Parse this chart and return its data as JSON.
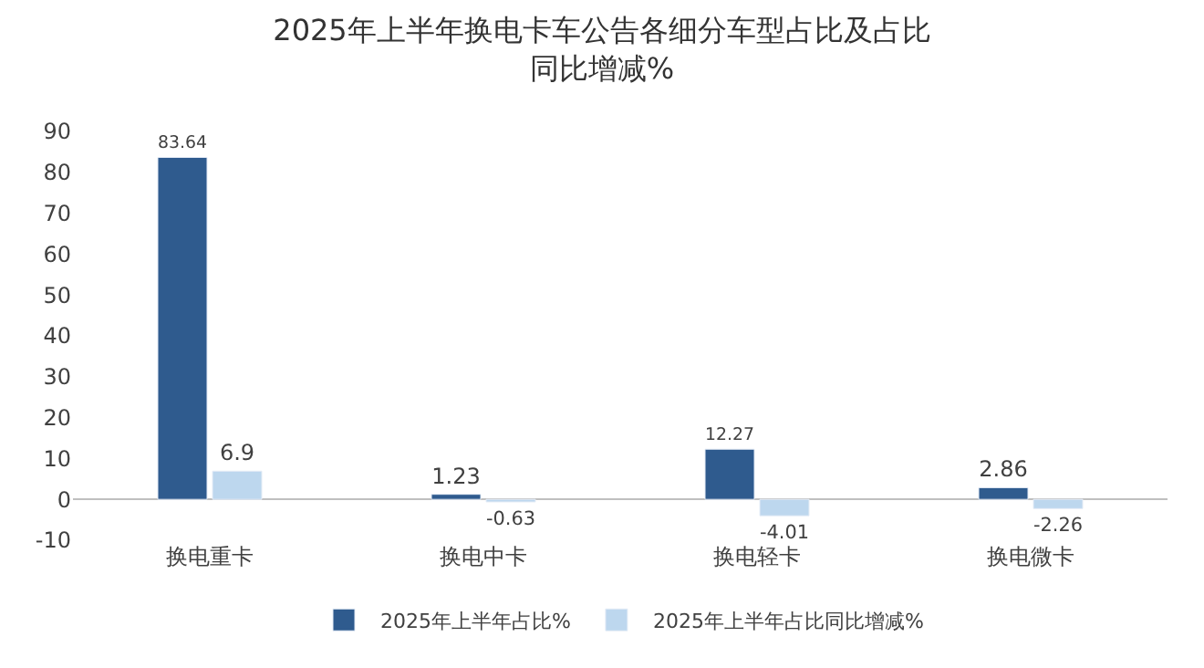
{
  "chart_data": {
    "type": "bar",
    "title": "2025年上半年换电卡车公告各细分车型占比及占比同比增减%",
    "categories": [
      "换电重卡",
      "换电中卡",
      "换电轻卡",
      "换电微卡"
    ],
    "series": [
      {
        "name": "2025年上半年占比%",
        "color": "#2f5b8e",
        "values": [
          83.64,
          1.23,
          12.27,
          2.86
        ]
      },
      {
        "name": "2025年上半年占比同比增减%",
        "color": "#bdd7ee",
        "values": [
          6.9,
          -0.63,
          -4.01,
          -2.26
        ]
      }
    ],
    "ylim": [
      -10,
      90
    ],
    "yticks": [
      -10,
      0,
      10,
      20,
      30,
      40,
      50,
      60,
      70,
      80,
      90
    ],
    "data_labels": true,
    "legend": "bottom"
  }
}
